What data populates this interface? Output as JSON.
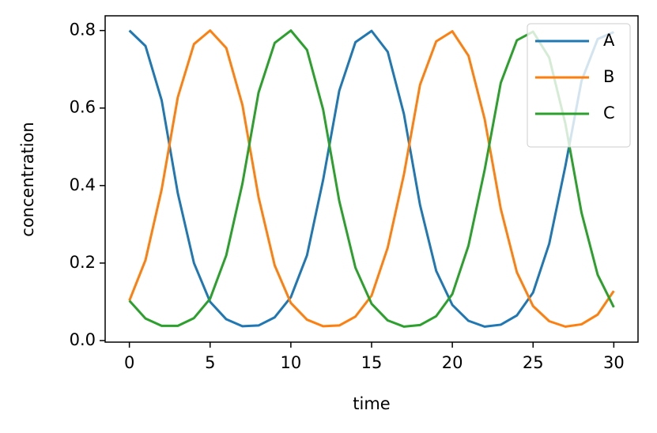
{
  "chart_data": {
    "type": "line",
    "x_label": "time",
    "y_label": "concentration",
    "x": [
      0,
      1,
      2,
      3,
      4,
      5,
      6,
      7,
      8,
      9,
      10,
      11,
      12,
      13,
      14,
      15,
      16,
      17,
      18,
      19,
      20,
      21,
      22,
      23,
      24,
      25,
      26,
      27,
      28,
      29,
      30
    ],
    "series": [
      {
        "name": "A",
        "color": "#1f77b4",
        "values": [
          0.8,
          0.76,
          0.62,
          0.38,
          0.2,
          0.1,
          0.055,
          0.037,
          0.039,
          0.06,
          0.112,
          0.22,
          0.415,
          0.645,
          0.77,
          0.799,
          0.745,
          0.585,
          0.35,
          0.18,
          0.092,
          0.051,
          0.036,
          0.041,
          0.065,
          0.124,
          0.25,
          0.45,
          0.67,
          0.778,
          0.796
        ]
      },
      {
        "name": "B",
        "color": "#ff7f0e",
        "values": [
          0.103,
          0.208,
          0.39,
          0.628,
          0.765,
          0.8,
          0.755,
          0.608,
          0.37,
          0.194,
          0.097,
          0.054,
          0.037,
          0.039,
          0.062,
          0.116,
          0.24,
          0.428,
          0.66,
          0.772,
          0.798,
          0.735,
          0.572,
          0.34,
          0.176,
          0.089,
          0.05,
          0.036,
          0.042,
          0.067,
          0.128
        ]
      },
      {
        "name": "C",
        "color": "#2ca02c",
        "values": [
          0.103,
          0.057,
          0.038,
          0.038,
          0.058,
          0.108,
          0.22,
          0.405,
          0.64,
          0.768,
          0.8,
          0.75,
          0.596,
          0.36,
          0.188,
          0.095,
          0.052,
          0.036,
          0.04,
          0.063,
          0.12,
          0.245,
          0.44,
          0.665,
          0.775,
          0.797,
          0.73,
          0.56,
          0.33,
          0.17,
          0.086
        ]
      }
    ],
    "xlim": [
      -1.5,
      31.5
    ],
    "xticks": [
      0,
      5,
      10,
      15,
      20,
      25,
      30
    ],
    "ylim": [
      -0.004,
      0.838
    ],
    "yticks": [
      {
        "value": 0,
        "label": "0.0"
      },
      0.2,
      0.4,
      0.6,
      0.8
    ],
    "grid": false,
    "legend": "upper right"
  }
}
